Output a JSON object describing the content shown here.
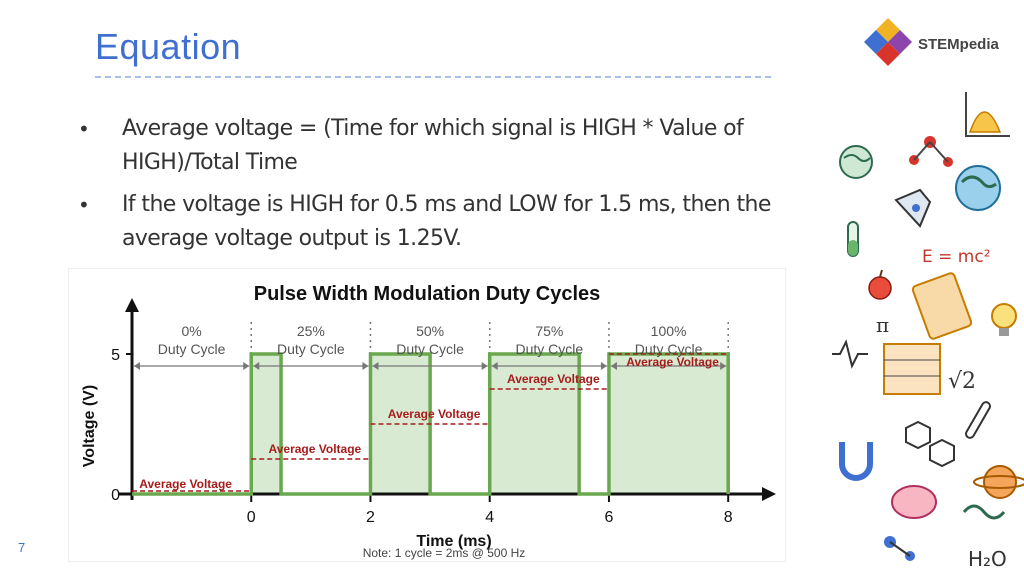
{
  "slide": {
    "title": "Equation",
    "page_number": "7",
    "bullets": [
      "Average voltage = (Time for which signal is HIGH * Value of HIGH)/Total Time",
      "If the voltage is HIGH for 0.5 ms and LOW for 1.5 ms, then the average voltage output is 1.25V."
    ]
  },
  "brand": {
    "name": "STEMpedia"
  },
  "doodles": {
    "formula_label": "E = mc²",
    "sqrt_label": "√2",
    "pi_label": "π",
    "h2o_label": "H₂O"
  },
  "chart_data": {
    "type": "line",
    "title": "Pulse Width Modulation Duty Cycles",
    "xlabel": "Time (ms)",
    "ylabel": "Voltage (V)",
    "note": "Note: 1 cycle = 2ms @ 500 Hz",
    "x_ticks": [
      0,
      2,
      4,
      6,
      8
    ],
    "y_ticks": [
      0,
      5
    ],
    "xlim": [
      -2,
      8.5
    ],
    "ylim": [
      0,
      6.5
    ],
    "series": [
      {
        "values": [
          [
            -2,
            0
          ],
          [
            0,
            0
          ],
          [
            0,
            5
          ],
          [
            0.5,
            5
          ],
          [
            0.5,
            0
          ],
          [
            2,
            0
          ],
          [
            2,
            5
          ],
          [
            3,
            5
          ],
          [
            3,
            0
          ],
          [
            4,
            0
          ],
          [
            4,
            5
          ],
          [
            5.5,
            5
          ],
          [
            5.5,
            0
          ],
          [
            6,
            0
          ],
          [
            6,
            5
          ],
          [
            8,
            5
          ],
          [
            8,
            0
          ]
        ]
      }
    ],
    "segments": [
      {
        "label": "0%",
        "sublabel": "Duty Cycle",
        "x_start": -2,
        "x_end": 0,
        "avg_voltage": 0,
        "avg_label": "Average Voltage"
      },
      {
        "label": "25%",
        "sublabel": "Duty Cycle",
        "x_start": 0,
        "x_end": 2,
        "avg_voltage": 1.25,
        "avg_label": "Average Voltage"
      },
      {
        "label": "50%",
        "sublabel": "Duty Cycle",
        "x_start": 2,
        "x_end": 4,
        "avg_voltage": 2.5,
        "avg_label": "Average Voltage"
      },
      {
        "label": "75%",
        "sublabel": "Duty Cycle",
        "x_start": 4,
        "x_end": 6,
        "avg_voltage": 3.75,
        "avg_label": "Average Voltage"
      },
      {
        "label": "100%",
        "sublabel": "Duty Cycle",
        "x_start": 6,
        "x_end": 8,
        "avg_voltage": 5,
        "avg_label": "Average Voltage"
      }
    ],
    "colors": {
      "signal": "#6aa84f",
      "fill": "#d9ead3",
      "average": "#a61c1c",
      "axis": "#111111"
    }
  }
}
